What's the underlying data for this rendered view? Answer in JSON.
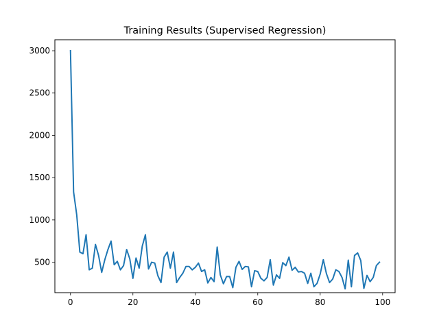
{
  "chart_data": {
    "type": "line",
    "title": "Training Results (Supervised Regression)",
    "xlabel": "",
    "ylabel": "",
    "xlim": [
      -5,
      104
    ],
    "ylim": [
      140,
      3130
    ],
    "x_ticks": [
      0,
      20,
      40,
      60,
      80,
      100
    ],
    "y_ticks": [
      500,
      1000,
      1500,
      2000,
      2500,
      3000
    ],
    "grid": false,
    "line_color": "#1f77b4",
    "series": [
      {
        "x": [
          0,
          1,
          2,
          3,
          4,
          5,
          6,
          7,
          8,
          9,
          10,
          11,
          12,
          13,
          14,
          15,
          16,
          17,
          18,
          19,
          20,
          21,
          22,
          23,
          24,
          25,
          26,
          27,
          28,
          29,
          30,
          31,
          32,
          33,
          34,
          35,
          36,
          37,
          38,
          39,
          40,
          41,
          42,
          43,
          44,
          45,
          46,
          47,
          48,
          49,
          50,
          51,
          52,
          53,
          54,
          55,
          56,
          57,
          58,
          59,
          60,
          61,
          62,
          63,
          64,
          65,
          66,
          67,
          68,
          69,
          70,
          71,
          72,
          73,
          74,
          75,
          76,
          77,
          78,
          79,
          80,
          81,
          82,
          83,
          84,
          85,
          86,
          87,
          88,
          89,
          90,
          91,
          92,
          93,
          94,
          95,
          96,
          97,
          98,
          99
        ],
        "values": [
          3000,
          1330,
          1060,
          620,
          600,
          825,
          410,
          430,
          710,
          580,
          380,
          530,
          650,
          750,
          470,
          510,
          410,
          460,
          650,
          540,
          310,
          550,
          430,
          690,
          825,
          420,
          500,
          490,
          340,
          260,
          560,
          620,
          430,
          620,
          260,
          320,
          370,
          450,
          450,
          410,
          440,
          490,
          390,
          410,
          255,
          320,
          270,
          680,
          350,
          245,
          330,
          330,
          200,
          440,
          510,
          415,
          450,
          445,
          210,
          400,
          390,
          310,
          280,
          320,
          530,
          230,
          350,
          310,
          495,
          460,
          560,
          405,
          440,
          385,
          390,
          370,
          250,
          370,
          210,
          250,
          360,
          530,
          365,
          260,
          300,
          410,
          390,
          320,
          185,
          525,
          210,
          580,
          610,
          520,
          190,
          345,
          270,
          320,
          460,
          500
        ]
      }
    ]
  }
}
